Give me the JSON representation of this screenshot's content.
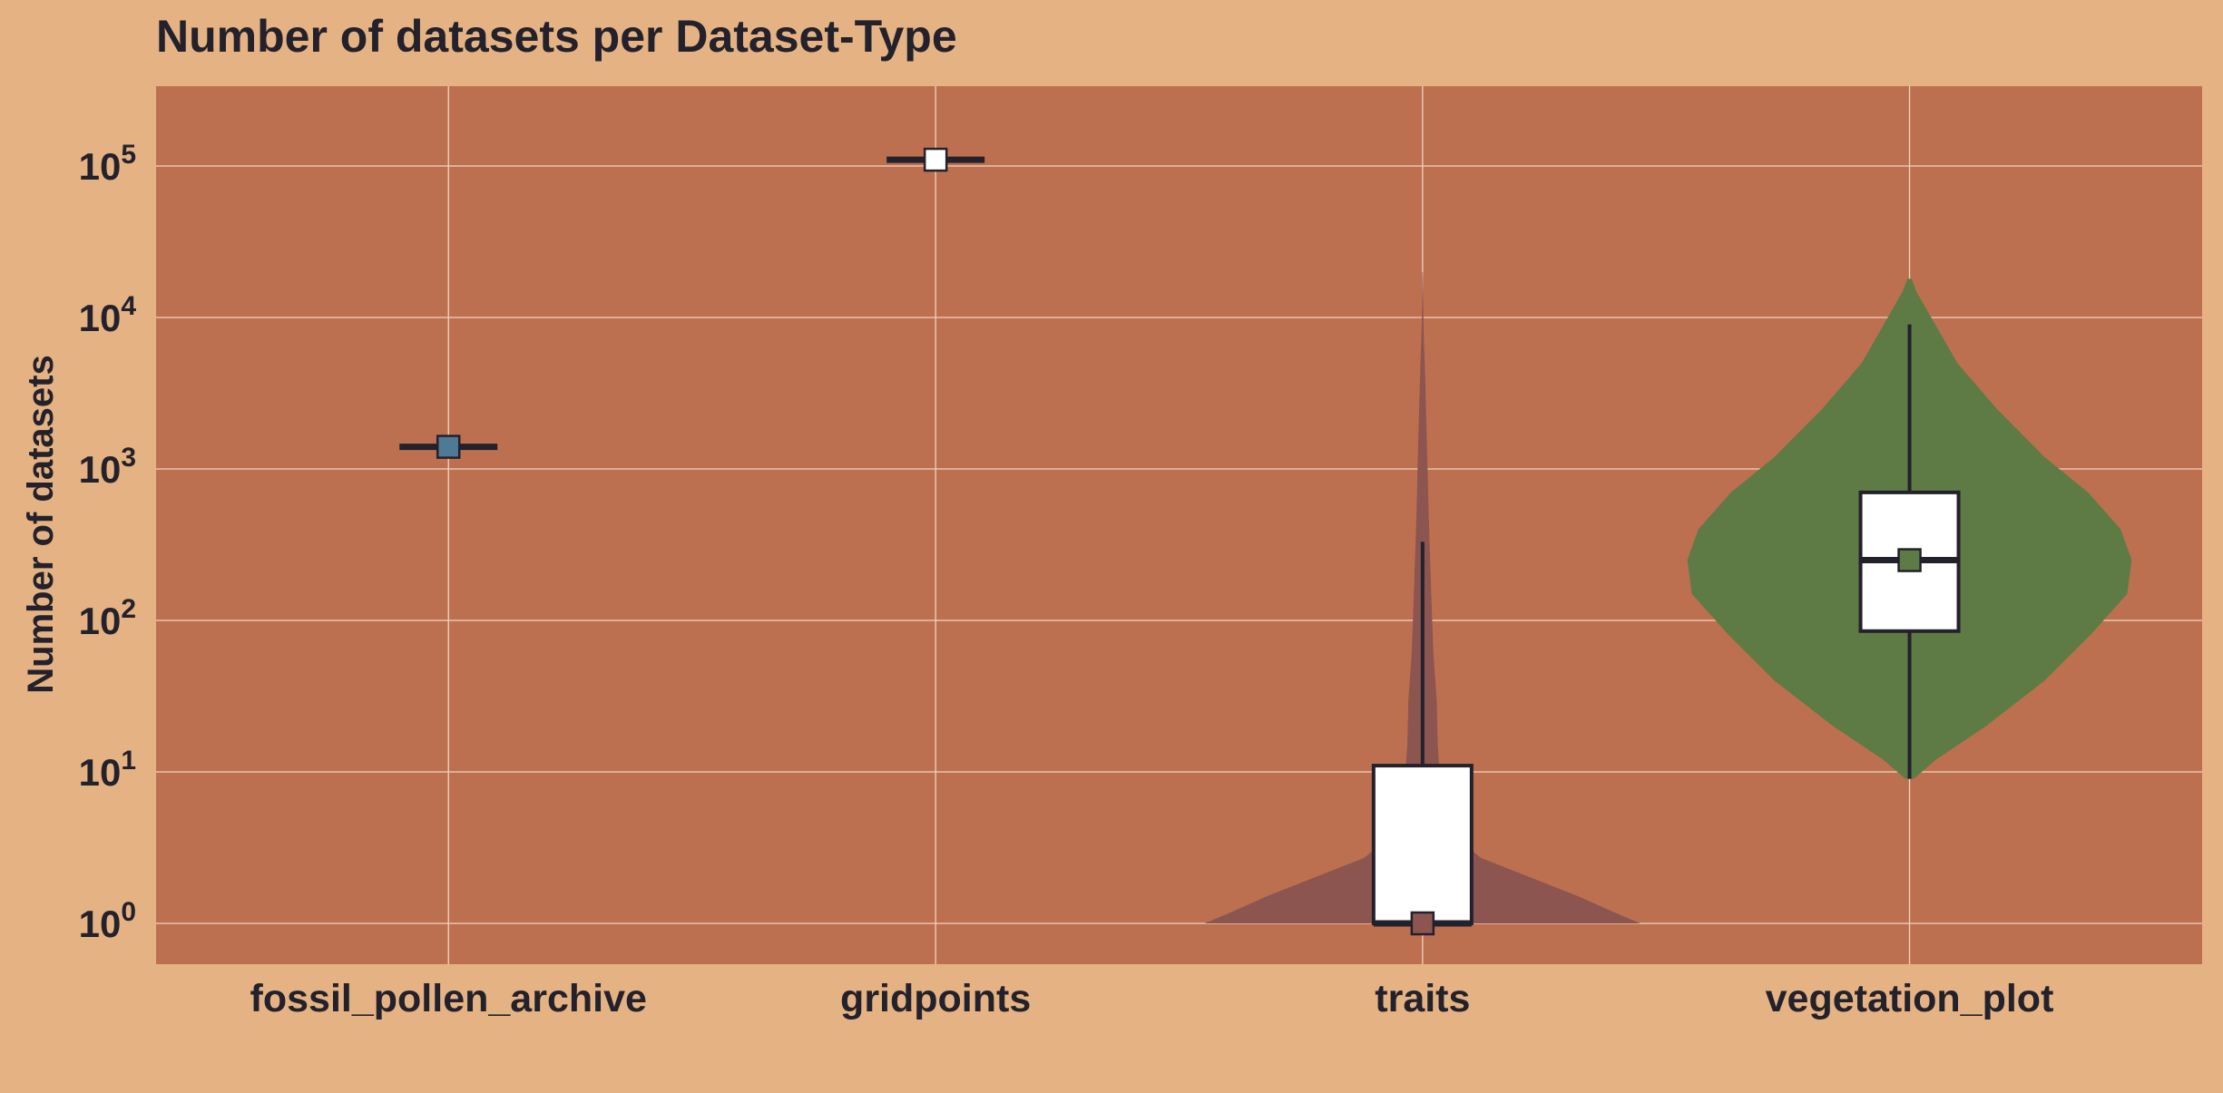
{
  "chart_data": {
    "type": "violin",
    "title": "Number of datasets per Dataset-Type",
    "xlabel": "",
    "ylabel": "Number of datasets",
    "yscale": "log",
    "ylim": [
      0.75,
      3000000
    ],
    "yticks": [
      {
        "value": 1,
        "base": "10",
        "exp": "0"
      },
      {
        "value": 10,
        "base": "10",
        "exp": "1"
      },
      {
        "value": 100,
        "base": "10",
        "exp": "2"
      },
      {
        "value": 1000,
        "base": "10",
        "exp": "3"
      },
      {
        "value": 10000,
        "base": "10",
        "exp": "4"
      },
      {
        "value": 100000,
        "base": "10",
        "exp": "5"
      }
    ],
    "grid": true,
    "categories": [
      "fossil_pollen_archive",
      "gridpoints",
      "traits",
      "vegetation_plot"
    ],
    "series": [
      {
        "category": "fossil_pollen_archive",
        "color": "#4e7a95",
        "min": 1400,
        "q1": 1400,
        "median": 1400,
        "q3": 1400,
        "max": 1400,
        "mean": 1400,
        "violin": []
      },
      {
        "category": "gridpoints",
        "color": "#ffffff",
        "min": 110000,
        "q1": 110000,
        "median": 110000,
        "q3": 110000,
        "max": 110000,
        "mean": 110000,
        "violin": []
      },
      {
        "category": "traits",
        "color": "#8c5550",
        "min": 1,
        "q1": 1,
        "median": 1,
        "q3": 11,
        "max": 330,
        "mean": 1,
        "violin": [
          [
            1,
            1.0
          ],
          [
            1.2,
            0.87
          ],
          [
            1.5,
            0.72
          ],
          [
            2,
            0.5
          ],
          [
            2.7,
            0.27
          ],
          [
            4,
            0.12
          ],
          [
            7,
            0.085
          ],
          [
            15,
            0.07
          ],
          [
            30,
            0.065
          ],
          [
            60,
            0.05
          ],
          [
            150,
            0.04
          ],
          [
            500,
            0.028
          ],
          [
            1500,
            0.02
          ],
          [
            4000,
            0.012
          ],
          [
            9000,
            0.004
          ],
          [
            20000,
            0.001
          ]
        ]
      },
      {
        "category": "vegetation_plot",
        "color": "#5e7b45",
        "min": 9,
        "q1": 85,
        "median": 250,
        "q3": 700,
        "max": 9000,
        "mean": 250,
        "violin": [
          [
            9,
            0.02
          ],
          [
            12,
            0.12
          ],
          [
            20,
            0.35
          ],
          [
            40,
            0.62
          ],
          [
            80,
            0.83
          ],
          [
            150,
            1.0
          ],
          [
            250,
            1.02
          ],
          [
            400,
            0.97
          ],
          [
            700,
            0.82
          ],
          [
            1200,
            0.62
          ],
          [
            2500,
            0.4
          ],
          [
            5000,
            0.22
          ],
          [
            10000,
            0.1
          ],
          [
            15000,
            0.03
          ],
          [
            18000,
            0.01
          ]
        ]
      }
    ]
  }
}
